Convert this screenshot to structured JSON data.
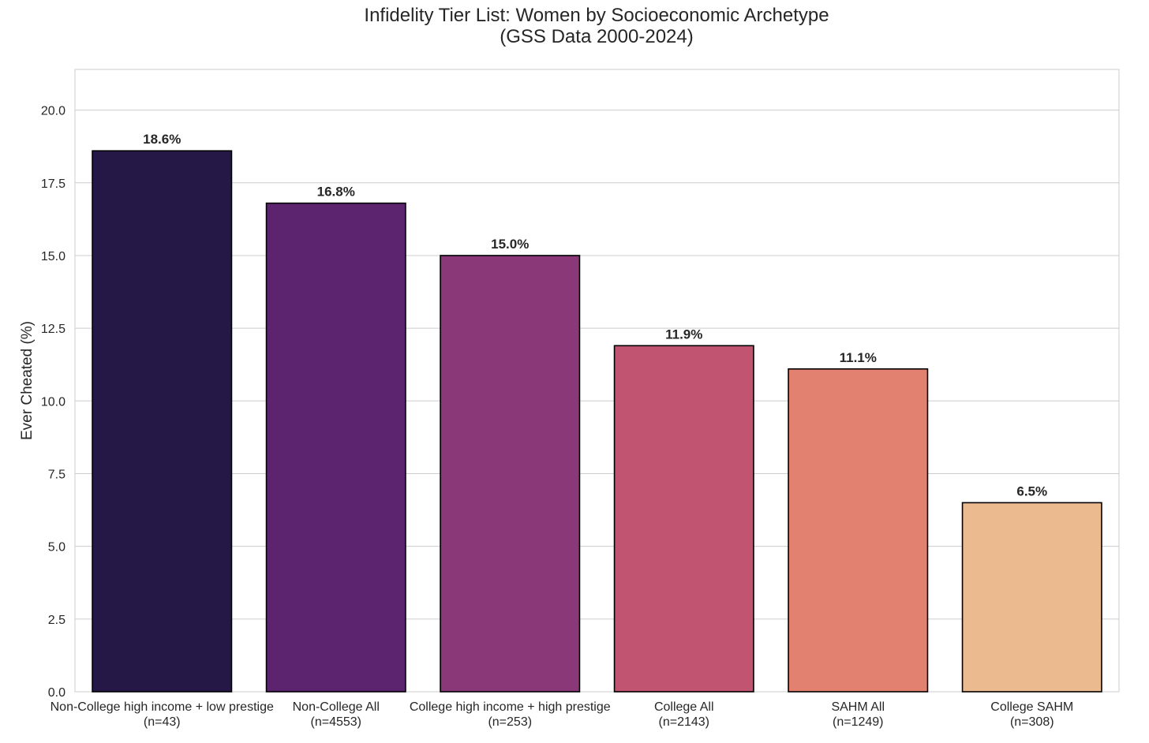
{
  "chart_data": {
    "type": "bar",
    "title": "Infidelity Tier List: Women by Socioeconomic Archetype",
    "subtitle": "(GSS Data 2000-2024)",
    "xlabel": "",
    "ylabel": "Ever Cheated (%)",
    "ylim": [
      0,
      21.4
    ],
    "yticks": [
      0,
      2.5,
      5,
      7.5,
      10,
      12.5,
      15,
      17.5,
      20
    ],
    "ytick_labels": [
      "0.0",
      "2.5",
      "5.0",
      "7.5",
      "10.0",
      "12.5",
      "15.0",
      "17.5",
      "20.0"
    ],
    "grid": true,
    "categories": [
      "Non-College high income + low prestige",
      "Non-College All",
      "College high income + high prestige",
      "College All",
      "SAHM All",
      "College SAHM"
    ],
    "sample_sizes": [
      "(n=43)",
      "(n=4553)",
      "(n=253)",
      "(n=2143)",
      "(n=1249)",
      "(n=308)"
    ],
    "values": [
      18.6,
      16.8,
      15.0,
      11.9,
      11.1,
      6.5
    ],
    "data_labels": [
      "18.6%",
      "16.8%",
      "15.0%",
      "11.9%",
      "11.1%",
      "6.5%"
    ],
    "colors": [
      "#251846",
      "#5c236f",
      "#8a3877",
      "#c05471",
      "#e38170",
      "#ecba8f"
    ],
    "bar_edge_color": "#000000",
    "grid_color": "#cccccc",
    "frame_color": "#cccccc"
  }
}
